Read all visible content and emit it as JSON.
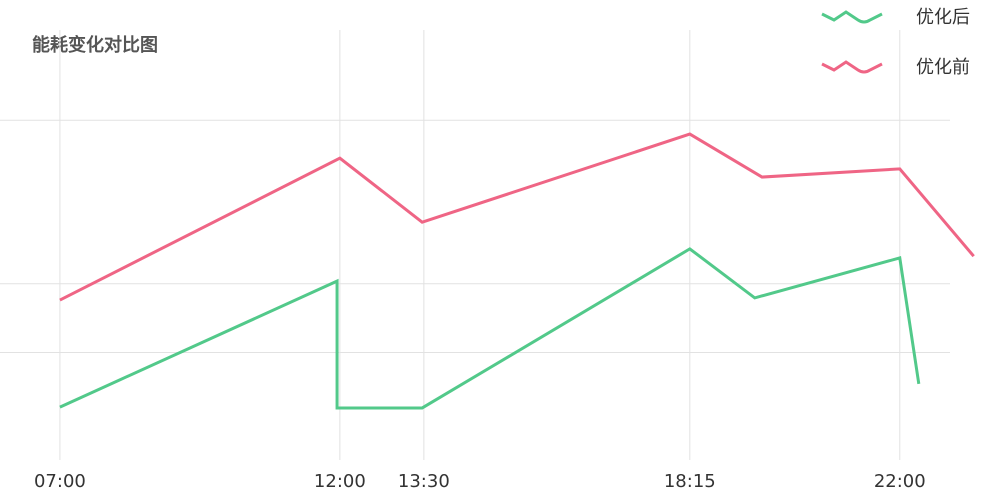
{
  "chart_data": {
    "type": "line",
    "title": "能耗变化对比图",
    "xlim": [
      5.93,
      23.79
    ],
    "xticks": [
      {
        "value": 7,
        "label": "07:00"
      },
      {
        "value": 12,
        "label": "12:00"
      },
      {
        "value": 13.5,
        "label": "13:30"
      },
      {
        "value": 18.25,
        "label": "18:15"
      },
      {
        "value": 22,
        "label": "22:00"
      }
    ],
    "ylim": [
      0,
      100
    ],
    "yticks": [
      25,
      41,
      79
    ],
    "grid": true,
    "legend": "top-right",
    "series": [
      {
        "name": "优化后",
        "color": "#52c98a",
        "x": [
          7.0,
          11.95,
          11.95,
          13.47,
          18.25,
          19.41,
          22.0,
          22.34
        ],
        "values": [
          12.3,
          41.6,
          12.1,
          12.1,
          49.1,
          37.7,
          47.0,
          17.7
        ]
      },
      {
        "name": "优化前",
        "color": "#ef6585",
        "x": [
          7.0,
          12.0,
          13.47,
          18.25,
          19.54,
          22.0,
          23.32
        ],
        "values": [
          37.2,
          70.2,
          55.3,
          75.8,
          65.8,
          67.7,
          47.4
        ]
      }
    ]
  }
}
